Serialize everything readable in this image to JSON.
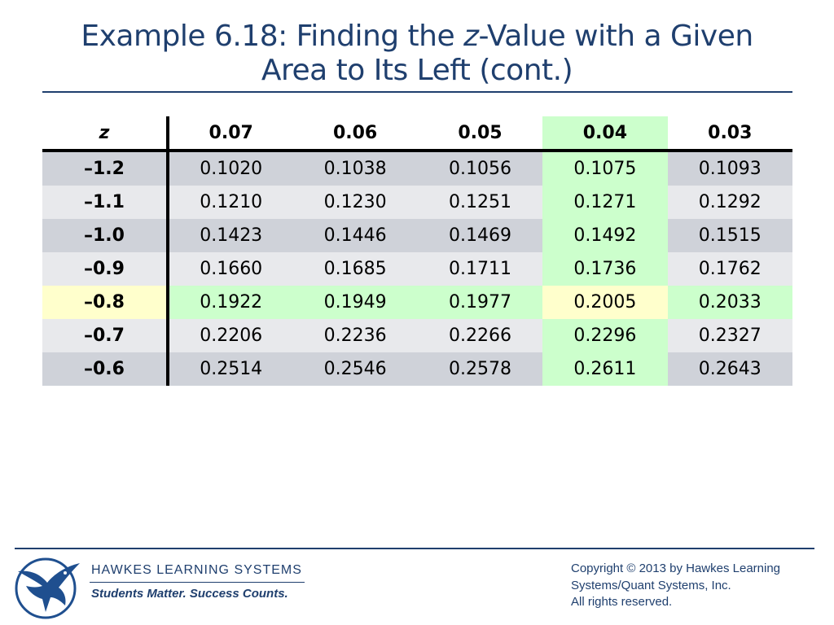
{
  "title": {
    "line1_prefix": "Example 6.18: Finding the ",
    "line1_italic": "z",
    "line1_suffix": "-Value with a Given",
    "line2": "Area to Its Left (cont.)"
  },
  "table": {
    "headers": [
      "z",
      "0.07",
      "0.06",
      "0.05",
      "0.04",
      "0.03"
    ],
    "highlight_column": "0.04",
    "highlight_row": "–0.8",
    "highlight_cell_value": "0.2005",
    "rows": [
      {
        "z": "–1.2",
        "values": [
          "0.1020",
          "0.1038",
          "0.1056",
          "0.1075",
          "0.1093"
        ]
      },
      {
        "z": "–1.1",
        "values": [
          "0.1210",
          "0.1230",
          "0.1251",
          "0.1271",
          "0.1292"
        ]
      },
      {
        "z": "–1.0",
        "values": [
          "0.1423",
          "0.1446",
          "0.1469",
          "0.1492",
          "0.1515"
        ]
      },
      {
        "z": "–0.9",
        "values": [
          "0.1660",
          "0.1685",
          "0.1711",
          "0.1736",
          "0.1762"
        ]
      },
      {
        "z": "–0.8",
        "values": [
          "0.1922",
          "0.1949",
          "0.1977",
          "0.2005",
          "0.2033"
        ]
      },
      {
        "z": "–0.7",
        "values": [
          "0.2206",
          "0.2236",
          "0.2266",
          "0.2296",
          "0.2327"
        ]
      },
      {
        "z": "–0.6",
        "values": [
          "0.2514",
          "0.2546",
          "0.2578",
          "0.2611",
          "0.2643"
        ]
      }
    ]
  },
  "colors": {
    "title": "#1f3f6e",
    "row_dark": "#cfd2d9",
    "row_light": "#e8e9ec",
    "highlight_green": "#ccffcc",
    "highlight_yellow": "#ffffcc"
  },
  "footer": {
    "logo_icon": "hawk-logo-icon",
    "brand": "HAWKES  LEARNING  SYSTEMS",
    "tagline": "Students Matter. Success Counts.",
    "copyright_lines": [
      "Copyright © 2013 by Hawkes Learning",
      "Systems/Quant Systems, Inc.",
      "All rights reserved."
    ]
  }
}
